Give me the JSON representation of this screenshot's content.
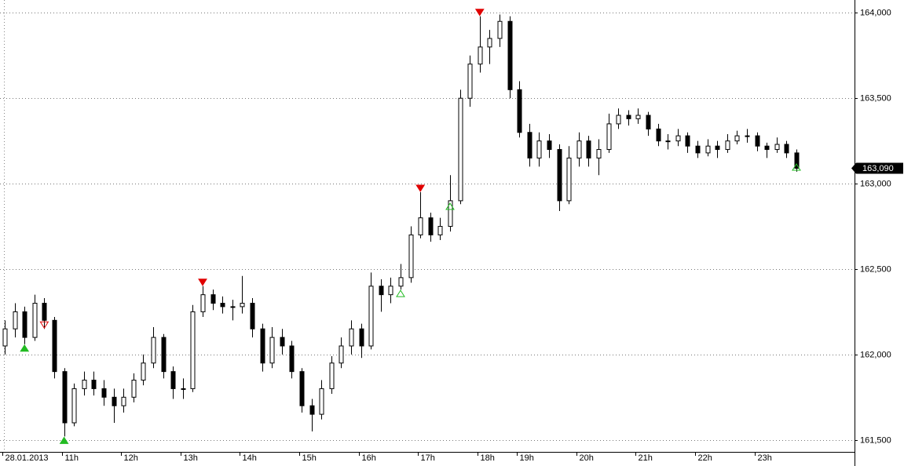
{
  "chart_data": {
    "type": "candlestick",
    "open": [
      162050,
      162150,
      162250,
      162100,
      162300,
      162200,
      161900,
      161600,
      161800,
      161850,
      161800,
      161750,
      161700,
      161750,
      161850,
      161950,
      162100,
      161900,
      161800,
      161800,
      162250,
      162350,
      162300,
      162280,
      162280,
      162300,
      162150,
      161950,
      162100,
      162050,
      161900,
      161700,
      161650,
      161800,
      161950,
      162050,
      162150,
      162050,
      162400,
      162350,
      162400,
      162450,
      162700,
      162800,
      162700,
      162750,
      162900,
      163500,
      163700,
      163800,
      163850,
      163950,
      163550,
      163300,
      163150,
      163250,
      163200,
      162900,
      163150,
      163250,
      163150,
      163200,
      163350,
      163400,
      163380,
      163400,
      163320,
      163250,
      163250,
      163280,
      163220,
      163180,
      163220,
      163200,
      163250,
      163280,
      163280,
      163220,
      163200,
      163230,
      163180
    ],
    "high": [
      162200,
      162300,
      162280,
      162350,
      162330,
      162220,
      161920,
      161830,
      161900,
      161900,
      161850,
      161800,
      161800,
      161890,
      162000,
      162160,
      162120,
      161930,
      161860,
      162290,
      162400,
      162380,
      162340,
      162320,
      162460,
      162330,
      162180,
      162160,
      162150,
      162080,
      161920,
      161740,
      161850,
      161990,
      162100,
      162200,
      162180,
      162480,
      162440,
      162450,
      162530,
      162750,
      162950,
      162830,
      162800,
      163050,
      163550,
      163750,
      163980,
      163900,
      163990,
      163980,
      163600,
      163350,
      163300,
      163290,
      163230,
      163220,
      163300,
      163280,
      163260,
      163410,
      163440,
      163430,
      163440,
      163420,
      163350,
      163290,
      163320,
      163300,
      163250,
      163260,
      163250,
      163290,
      163310,
      163320,
      163300,
      163240,
      163270,
      163250,
      163200
    ],
    "low": [
      162000,
      162100,
      162060,
      162080,
      162150,
      161860,
      161520,
      161580,
      161760,
      161760,
      161700,
      161600,
      161660,
      161720,
      161820,
      161920,
      161860,
      161740,
      161740,
      161780,
      162220,
      162260,
      162240,
      162200,
      162240,
      162100,
      161900,
      161920,
      162000,
      161860,
      161660,
      161550,
      161620,
      161770,
      161920,
      162000,
      161980,
      162030,
      162250,
      162300,
      162380,
      162420,
      162680,
      162660,
      162670,
      162720,
      162880,
      163450,
      163650,
      163700,
      163800,
      163500,
      163270,
      163100,
      163100,
      163150,
      162840,
      162880,
      163100,
      163100,
      163050,
      163180,
      163320,
      163340,
      163350,
      163280,
      163220,
      163200,
      163220,
      163180,
      163150,
      163160,
      163150,
      163180,
      163230,
      163240,
      163190,
      163150,
      163180,
      163150,
      163070
    ],
    "close": [
      162150,
      162250,
      162100,
      162300,
      162200,
      161900,
      161600,
      161800,
      161850,
      161800,
      161750,
      161700,
      161750,
      161850,
      161950,
      162100,
      161900,
      161800,
      161800,
      162250,
      162350,
      162300,
      162280,
      162280,
      162300,
      162150,
      161950,
      162100,
      162050,
      161900,
      161700,
      161650,
      161800,
      161950,
      162050,
      162150,
      162050,
      162400,
      162350,
      162400,
      162450,
      162700,
      162800,
      162700,
      162750,
      162900,
      163500,
      163700,
      163800,
      163850,
      163950,
      163550,
      163300,
      163150,
      163250,
      163200,
      162900,
      163150,
      163250,
      163150,
      163200,
      163350,
      163400,
      163380,
      163400,
      163320,
      163250,
      163250,
      163280,
      163220,
      163180,
      163220,
      163200,
      163250,
      163280,
      163280,
      163220,
      163200,
      163230,
      163180,
      163090
    ],
    "last_label": "163,090",
    "signals": [
      {
        "index": 2,
        "value": 162060,
        "direction": "up",
        "color": "#22bb22",
        "filled": true
      },
      {
        "index": 4,
        "value": 162150,
        "direction": "down",
        "color": "#e00000",
        "filled": false
      },
      {
        "index": 6,
        "value": 161520,
        "direction": "up",
        "color": "#22bb22",
        "filled": true
      },
      {
        "index": 20,
        "value": 162400,
        "direction": "down",
        "color": "#e00000",
        "filled": true
      },
      {
        "index": 40,
        "value": 162380,
        "direction": "up",
        "color": "#22bb22",
        "filled": false
      },
      {
        "index": 42,
        "value": 162950,
        "direction": "down",
        "color": "#e00000",
        "filled": true
      },
      {
        "index": 45,
        "value": 162890,
        "direction": "up",
        "color": "#22bb22",
        "filled": false
      },
      {
        "index": 48,
        "value": 163980,
        "direction": "down",
        "color": "#e00000",
        "filled": true
      },
      {
        "index": 80,
        "value": 163120,
        "direction": "up",
        "color": "#22bb22",
        "filled": false
      }
    ],
    "ylim": [
      161430,
      164075
    ],
    "yticks": [
      {
        "value": 161500,
        "label": "161,500"
      },
      {
        "value": 162000,
        "label": "162,000"
      },
      {
        "value": 162500,
        "label": "162,500"
      },
      {
        "value": 163000,
        "label": "163,000"
      },
      {
        "value": 163500,
        "label": "163,500"
      },
      {
        "value": 164000,
        "label": "164,000"
      }
    ],
    "xticks": [
      {
        "value": 0,
        "label": "28.01.2013"
      },
      {
        "value": 6,
        "label": "11h"
      },
      {
        "value": 12,
        "label": "12h"
      },
      {
        "value": 18,
        "label": "13h"
      },
      {
        "value": 24,
        "label": "14h"
      },
      {
        "value": 30,
        "label": "15h"
      },
      {
        "value": 36,
        "label": "16h"
      },
      {
        "value": 42,
        "label": "17h"
      },
      {
        "value": 48,
        "label": "18h"
      },
      {
        "value": 52,
        "label": "19h"
      },
      {
        "value": 58,
        "label": "20h"
      },
      {
        "value": 64,
        "label": "21h"
      },
      {
        "value": 70,
        "label": "22h"
      },
      {
        "value": 76,
        "label": "23h"
      }
    ],
    "grid": true
  }
}
